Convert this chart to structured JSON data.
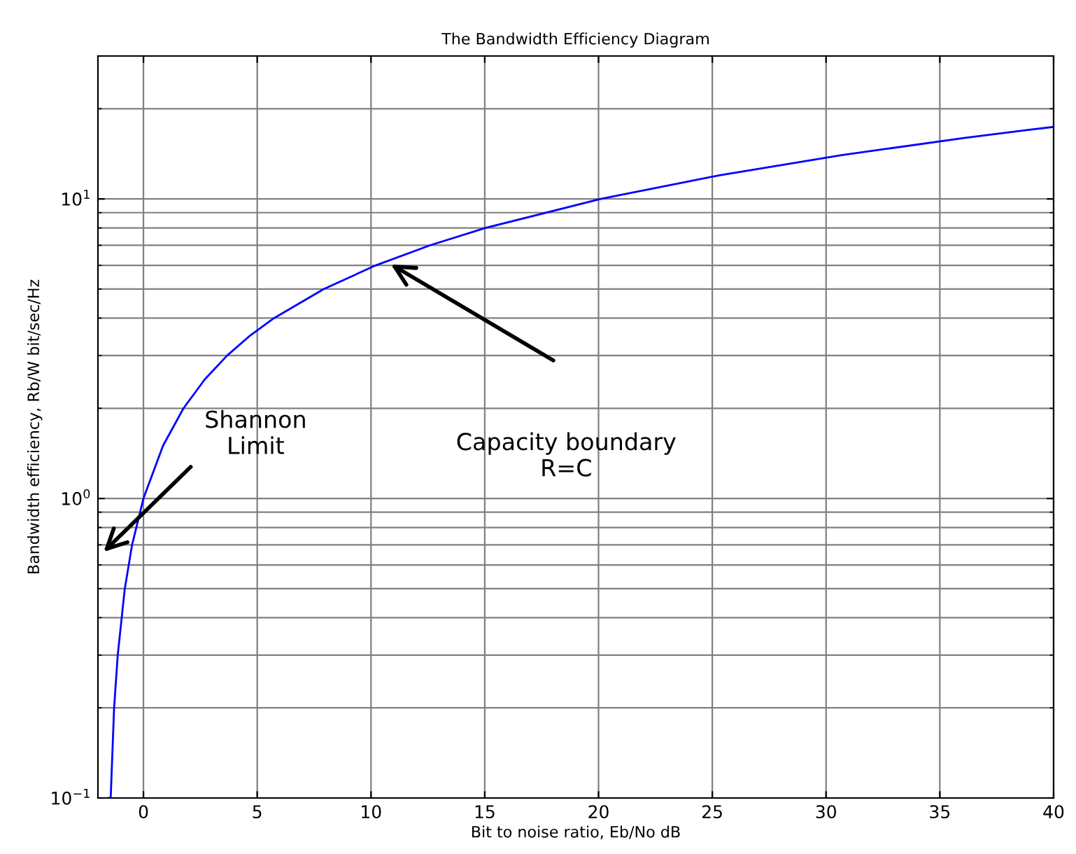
{
  "chart_data": {
    "type": "line",
    "title": "The Bandwidth Efficiency Diagram",
    "xlabel": "Bit to noise ratio, Eb/No dB",
    "ylabel": "Bandwidth efficiency, Rb/W bit/sec/Hz",
    "x": [
      -1.54,
      -1.44,
      -1.29,
      -1.13,
      -0.82,
      -0.5,
      0,
      0.86,
      1.76,
      2.7,
      3.68,
      4.69,
      5.74,
      7.92,
      10.21,
      12.59,
      15.03,
      20.1,
      25.33,
      30.68,
      36.12,
      38.87,
      40
    ],
    "series": [
      {
        "color": "#0000ff",
        "values": [
          0.1,
          0.1,
          0.2,
          0.3,
          0.5,
          0.7,
          1,
          1.5,
          2,
          2.5,
          3,
          3.5,
          4,
          5,
          6,
          7,
          8,
          10,
          12,
          14,
          16,
          17,
          17.4
        ]
      }
    ],
    "log": "y",
    "xlim": [
      -2,
      40
    ],
    "ylim": [
      0.1,
      30
    ],
    "xticks": [
      0,
      5,
      10,
      15,
      20,
      25,
      30,
      35,
      40
    ],
    "yticks": [
      {
        "value": 0.1,
        "label": "10$^{−1}$"
      },
      {
        "value": 1,
        "label": "10$^{0}$"
      },
      {
        "value": 10,
        "label": "10$^{1}$"
      }
    ],
    "grid": true,
    "marker": "none",
    "line_style": "solid",
    "annotations": [
      "Shannon\nLimit",
      "Capacity boundary\nR=C"
    ]
  }
}
